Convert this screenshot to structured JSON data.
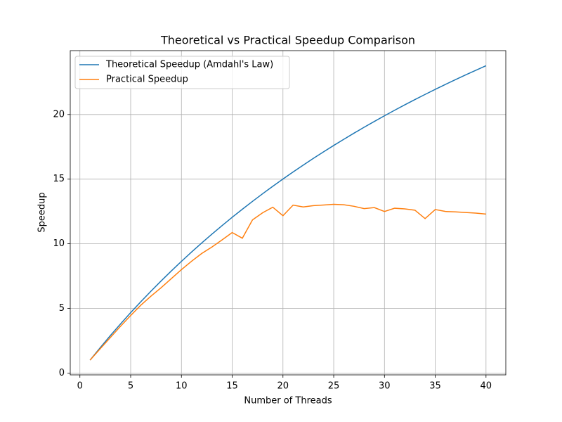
{
  "chart_data": {
    "type": "line",
    "title": "Theoretical vs Practical Speedup Comparison",
    "x_label": "Number of Threads",
    "y_label": "Speedup",
    "x": [
      1,
      2,
      3,
      4,
      5,
      6,
      7,
      8,
      9,
      10,
      11,
      12,
      13,
      14,
      15,
      16,
      17,
      18,
      19,
      20,
      21,
      22,
      23,
      24,
      25,
      26,
      27,
      28,
      29,
      30,
      31,
      32,
      33,
      34,
      35,
      36,
      37,
      38,
      39,
      40
    ],
    "series": [
      {
        "name": "Theoretical Speedup (Amdahl's Law)",
        "color": "#1f77b4",
        "values": [
          1,
          1.966,
          2.899,
          3.8,
          4.673,
          5.517,
          6.335,
          7.127,
          7.895,
          8.639,
          9.362,
          10.063,
          10.744,
          11.405,
          12.048,
          12.673,
          13.281,
          13.873,
          14.449,
          15.009,
          15.556,
          16.088,
          16.607,
          17.112,
          17.606,
          18.087,
          18.557,
          19.015,
          19.463,
          19.9,
          20.328,
          20.746,
          21.154,
          21.553,
          21.944,
          22.326,
          22.699,
          23.065,
          23.423,
          23.774
        ]
      },
      {
        "name": "Practical Speedup",
        "color": "#ff7f0e",
        "values": [
          1,
          1.88,
          2.75,
          3.62,
          4.45,
          5.25,
          5.95,
          6.6,
          7.3,
          8.0,
          8.65,
          9.25,
          9.75,
          10.3,
          10.87,
          10.43,
          11.85,
          12.4,
          12.83,
          12.17,
          12.99,
          12.85,
          12.95,
          13.0,
          13.05,
          13.02,
          12.9,
          12.72,
          12.8,
          12.5,
          12.75,
          12.7,
          12.6,
          11.95,
          12.65,
          12.5,
          12.47,
          12.42,
          12.37,
          12.3
        ]
      }
    ],
    "xlim": [
      -0.95,
      41.95
    ],
    "ylim": [
      -0.14,
      24.94
    ],
    "xticks": [
      0,
      5,
      10,
      15,
      20,
      25,
      30,
      35,
      40
    ],
    "yticks": [
      0,
      5,
      10,
      15,
      20
    ],
    "grid": true,
    "legend": "upper-left"
  }
}
